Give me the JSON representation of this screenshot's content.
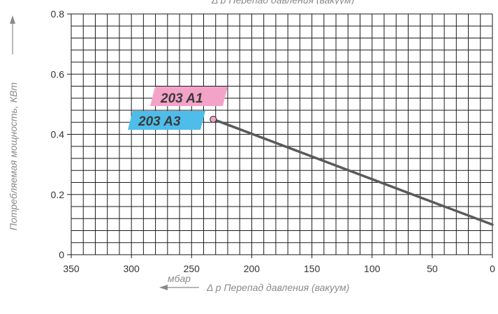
{
  "chart_data": {
    "type": "line",
    "title": "",
    "x_top_label": "Δ p Перепад давления (вакуум)",
    "x_unit": "мбар",
    "xlabel": "Δ p Перепад давления (вакуум)",
    "ylabel": "Потребляемая мощность, КВт",
    "xlim": [
      350,
      0
    ],
    "ylim": [
      0,
      0.8
    ],
    "x_ticks": [
      "350",
      "300",
      "250",
      "200",
      "150",
      "100",
      "50",
      "0"
    ],
    "y_ticks": [
      "0",
      "0.2",
      "0.4",
      "0.6",
      "0.8"
    ],
    "grid": true,
    "series": [
      {
        "name": "203 A1",
        "color": "#f4a3c8",
        "x": [
          232,
          0
        ],
        "y": [
          0.45,
          0.1
        ]
      },
      {
        "name": "203 A3",
        "color": "#4ebde9",
        "x": [
          232,
          0
        ],
        "y": [
          0.45,
          0.1
        ]
      }
    ],
    "line_color": "#5a5a5a",
    "marker_color": "#f4a3c8"
  }
}
